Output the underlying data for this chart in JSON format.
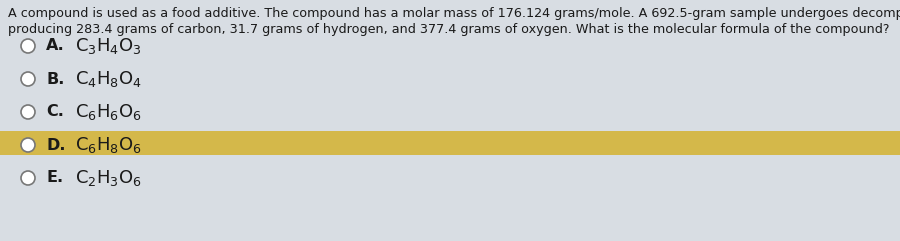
{
  "question_line1": "A compound is used as a food additive. The compound has a molar mass of 176.124 grams/mole. A 692.5-gram sample undergoes decompositio",
  "question_line2": "producing 283.4 grams of carbon, 31.7 grams of hydrogen, and 377.4 grams of oxygen. What is the molecular formula of the compound?",
  "options": [
    {
      "label": "A.",
      "formula_parts": [
        [
          "C",
          "3"
        ],
        [
          "H",
          "4"
        ],
        [
          "O",
          "3"
        ]
      ],
      "highlight": false
    },
    {
      "label": "B.",
      "formula_parts": [
        [
          "C",
          "4"
        ],
        [
          "H",
          "8"
        ],
        [
          "O",
          "4"
        ]
      ],
      "highlight": false
    },
    {
      "label": "C.",
      "formula_parts": [
        [
          "C",
          "6"
        ],
        [
          "H",
          "6"
        ],
        [
          "O",
          "6"
        ]
      ],
      "highlight": false
    },
    {
      "label": "D.",
      "formula_parts": [
        [
          "C",
          "6"
        ],
        [
          "H",
          "8"
        ],
        [
          "O",
          "6"
        ]
      ],
      "highlight": true
    },
    {
      "label": "E.",
      "formula_parts": [
        [
          "C",
          "2"
        ],
        [
          "H",
          "3"
        ],
        [
          "O",
          "6"
        ]
      ],
      "highlight": false
    }
  ],
  "highlight_color": "#D4B84A",
  "bg_color": "#D8DDE3",
  "text_color": "#1a1a1a",
  "circle_color": "#777777",
  "font_size_question": 9.2,
  "font_size_options": 11.5,
  "fig_width": 9.0,
  "fig_height": 2.41,
  "dpi": 100
}
